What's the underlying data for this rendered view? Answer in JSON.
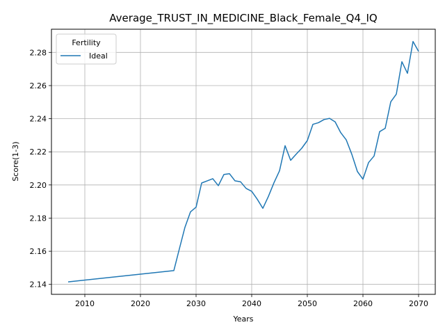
{
  "chart_data": {
    "type": "line",
    "title": "Average_TRUST_IN_MEDICINE_Black_Female_Q4_IQ",
    "xlabel": "Years",
    "ylabel": "Score(1-3)",
    "xlim": [
      2004,
      2073
    ],
    "ylim": [
      2.134,
      2.294
    ],
    "xticks": [
      2010,
      2020,
      2030,
      2040,
      2050,
      2060,
      2070
    ],
    "yticks": [
      2.14,
      2.16,
      2.18,
      2.2,
      2.22,
      2.24,
      2.26,
      2.28
    ],
    "ytick_labels": [
      "2.14",
      "2.16",
      "2.18",
      "2.20",
      "2.22",
      "2.24",
      "2.26",
      "2.28"
    ],
    "grid": true,
    "legend": {
      "title": "Fertility",
      "position": "upper-left"
    },
    "series": [
      {
        "name": "Ideal",
        "color": "#1f77b4",
        "x": [
          2007,
          2026,
          2027,
          2028,
          2029,
          2030,
          2031,
          2032,
          2033,
          2034,
          2035,
          2036,
          2037,
          2038,
          2039,
          2040,
          2041,
          2042,
          2043,
          2044,
          2045,
          2046,
          2047,
          2048,
          2049,
          2050,
          2051,
          2052,
          2053,
          2054,
          2055,
          2056,
          2057,
          2058,
          2059,
          2060,
          2061,
          2062,
          2063,
          2064,
          2065,
          2066,
          2067,
          2068,
          2069,
          2070
        ],
        "y": [
          2.1415,
          2.1483,
          2.1615,
          2.1745,
          2.1838,
          2.1866,
          2.2012,
          2.2025,
          2.2038,
          2.1996,
          2.2063,
          2.2068,
          2.2025,
          2.2019,
          2.1979,
          2.1962,
          2.1914,
          2.1859,
          2.1931,
          2.2013,
          2.2086,
          2.2237,
          2.2149,
          2.2186,
          2.2222,
          2.2268,
          2.2366,
          2.2376,
          2.2395,
          2.2402,
          2.2381,
          2.2316,
          2.2272,
          2.2185,
          2.2081,
          2.2035,
          2.2135,
          2.2175,
          2.2322,
          2.2342,
          2.2502,
          2.2548,
          2.2744,
          2.2674,
          2.2866,
          2.2806
        ]
      }
    ]
  }
}
